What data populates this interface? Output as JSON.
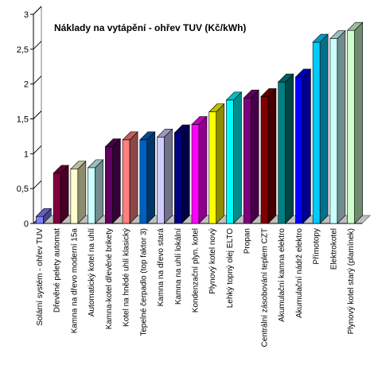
{
  "chart_data": {
    "type": "bar",
    "title": "Náklady na vytápění - ohřev TUV (Kč/kWh)",
    "xlabel": "",
    "ylabel": "",
    "ylim": [
      0,
      3
    ],
    "yticks": [
      "0",
      "0,5",
      "1",
      "1,5",
      "2",
      "2,5",
      "3"
    ],
    "grid": false,
    "legend": "none",
    "style": "3d-bar",
    "categories": [
      "Solární systém - ohřev TUV",
      "Dřevěné pelety automat",
      "Kamna na dřevo moderní 15a",
      "Automatický kotel na uhlí",
      "Kamna-kotel dřevěné brikety",
      "Kotel na hnědé uhlí klasický",
      "Tepelné čerpadlo (top faktor 3)",
      "Kamna na dřevo stará",
      "Kamna na uhlí lokální",
      "Kondenzační plyn. kotel",
      "Plynový kotel nový",
      "Lehký topný olej ELTO",
      "Propan",
      "Centrální zásobování teplem CZT",
      "Akumulační kamna elektro",
      "Akumulační nádrž elektro",
      "Přímotopy",
      "Elektrokotel",
      "Plynový kotel starý (plamínek)"
    ],
    "values": [
      0.1,
      0.72,
      0.78,
      0.8,
      1.1,
      1.2,
      1.2,
      1.24,
      1.3,
      1.42,
      1.6,
      1.77,
      1.8,
      1.82,
      2.03,
      2.1,
      2.6,
      2.65,
      2.77
    ],
    "colors": [
      "#8080ff",
      "#800040",
      "#ffffcc",
      "#ccffff",
      "#600060",
      "#ff8080",
      "#0060c0",
      "#ccccff",
      "#000080",
      "#ff00ff",
      "#ffff00",
      "#00ffff",
      "#800080",
      "#800000",
      "#008080",
      "#0000ff",
      "#00ccff",
      "#ccffff",
      "#ccffcc"
    ]
  }
}
